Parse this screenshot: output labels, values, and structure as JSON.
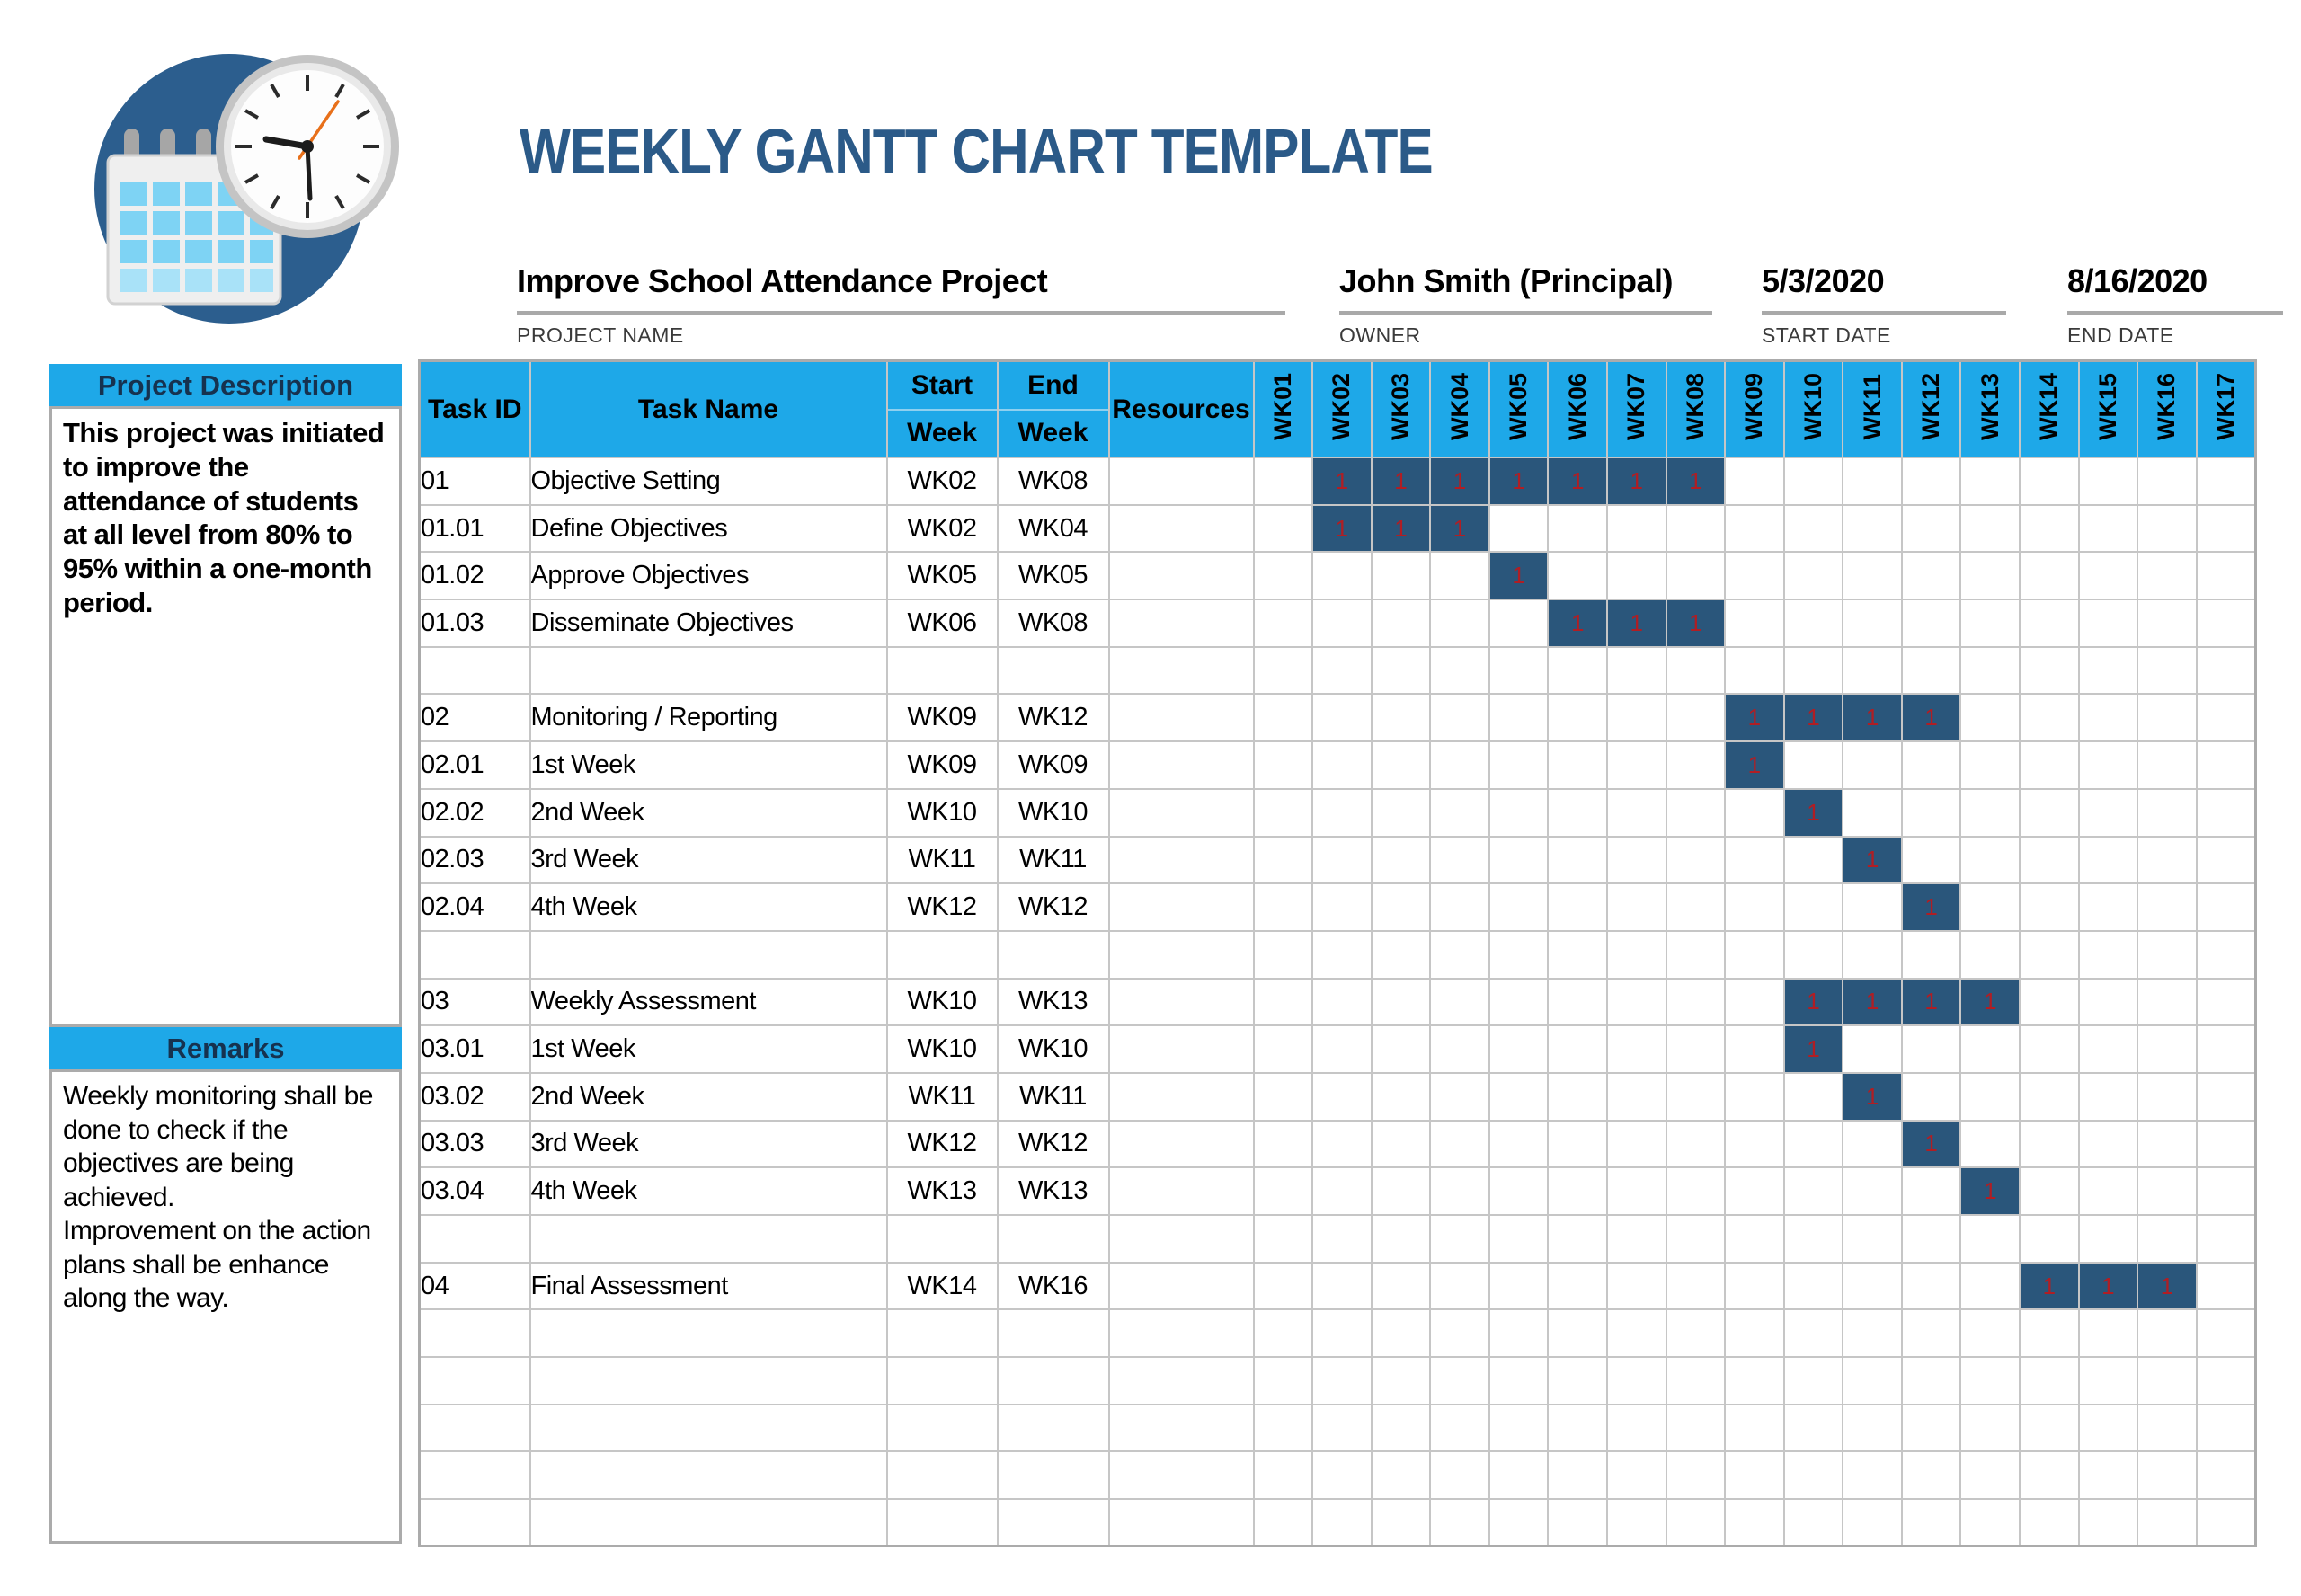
{
  "page": {
    "title": "WEEKLY GANTT CHART TEMPLATE"
  },
  "project_info": {
    "fields": [
      {
        "value": "Improve School Attendance Project",
        "label": "PROJECT NAME"
      },
      {
        "value": "John Smith (Principal)",
        "label": "OWNER"
      },
      {
        "value": "5/3/2020",
        "label": "START DATE"
      },
      {
        "value": "8/16/2020",
        "label": "END DATE"
      }
    ]
  },
  "sidebar": {
    "description": {
      "title": "Project Description",
      "body": "This project was initiated to improve the attendance of students at all level from 80% to 95% within a one-month period."
    },
    "remarks": {
      "title": "Remarks",
      "lines": [
        "Weekly monitoring shall be done to check if the objectives are being achieved.",
        "Improvement on the action plans shall be enhance along the way."
      ]
    }
  },
  "table": {
    "headers": {
      "task_id": "Task ID",
      "task_name": "Task Name",
      "start1": "Start",
      "start2": "Week",
      "end1": "End",
      "end2": "Week",
      "resources": "Resources"
    }
  },
  "chart_data": {
    "type": "table",
    "subtype": "gantt",
    "title": "WEEKLY GANTT CHART TEMPLATE",
    "weeks": [
      "WK01",
      "WK02",
      "WK03",
      "WK04",
      "WK05",
      "WK06",
      "WK07",
      "WK08",
      "WK09",
      "WK10",
      "WK11",
      "WK12",
      "WK13",
      "WK14",
      "WK15",
      "WK16",
      "WK17"
    ],
    "cell_value": "1",
    "tasks": [
      {
        "id": "01",
        "name": "Objective Setting",
        "start": "WK02",
        "end": "WK08",
        "resources": ""
      },
      {
        "id": "01.01",
        "name": "Define Objectives",
        "start": "WK02",
        "end": "WK04",
        "resources": ""
      },
      {
        "id": "01.02",
        "name": "Approve Objectives",
        "start": "WK05",
        "end": "WK05",
        "resources": ""
      },
      {
        "id": "01.03",
        "name": "Disseminate Objectives",
        "start": "WK06",
        "end": "WK08",
        "resources": ""
      },
      {
        "id": "",
        "name": "",
        "start": "",
        "end": "",
        "resources": ""
      },
      {
        "id": "02",
        "name": "Monitoring / Reporting",
        "start": "WK09",
        "end": "WK12",
        "resources": ""
      },
      {
        "id": "02.01",
        "name": "1st Week",
        "start": "WK09",
        "end": "WK09",
        "resources": ""
      },
      {
        "id": "02.02",
        "name": "2nd Week",
        "start": "WK10",
        "end": "WK10",
        "resources": ""
      },
      {
        "id": "02.03",
        "name": "3rd Week",
        "start": "WK11",
        "end": "WK11",
        "resources": ""
      },
      {
        "id": "02.04",
        "name": "4th Week",
        "start": "WK12",
        "end": "WK12",
        "resources": ""
      },
      {
        "id": "",
        "name": "",
        "start": "",
        "end": "",
        "resources": ""
      },
      {
        "id": "03",
        "name": "Weekly Assessment",
        "start": "WK10",
        "end": "WK13",
        "resources": ""
      },
      {
        "id": "03.01",
        "name": "1st Week",
        "start": "WK10",
        "end": "WK10",
        "resources": ""
      },
      {
        "id": "03.02",
        "name": "2nd Week",
        "start": "WK11",
        "end": "WK11",
        "resources": ""
      },
      {
        "id": "03.03",
        "name": "3rd Week",
        "start": "WK12",
        "end": "WK12",
        "resources": ""
      },
      {
        "id": "03.04",
        "name": "4th Week",
        "start": "WK13",
        "end": "WK13",
        "resources": ""
      },
      {
        "id": "",
        "name": "",
        "start": "",
        "end": "",
        "resources": ""
      },
      {
        "id": "04",
        "name": "Final Assessment",
        "start": "WK14",
        "end": "WK16",
        "resources": ""
      },
      {
        "id": "",
        "name": "",
        "start": "",
        "end": "",
        "resources": ""
      },
      {
        "id": "",
        "name": "",
        "start": "",
        "end": "",
        "resources": ""
      },
      {
        "id": "",
        "name": "",
        "start": "",
        "end": "",
        "resources": ""
      },
      {
        "id": "",
        "name": "",
        "start": "",
        "end": "",
        "resources": ""
      },
      {
        "id": "",
        "name": "",
        "start": "",
        "end": "",
        "resources": ""
      }
    ]
  },
  "colors": {
    "accent_cyan": "#1EA8E8",
    "title_navy": "#2B5A88",
    "bar_fill_navy": "#2A567B",
    "bar_value_red": "#B01E24",
    "underline_gray": "#A9A9A9",
    "grid_gray": "#C6C6C6",
    "logo_circle_blue": "#2C5E8E",
    "logo_calendar_blue": "#7ED3F4",
    "clock_second_hand_orange": "#E8701A"
  }
}
